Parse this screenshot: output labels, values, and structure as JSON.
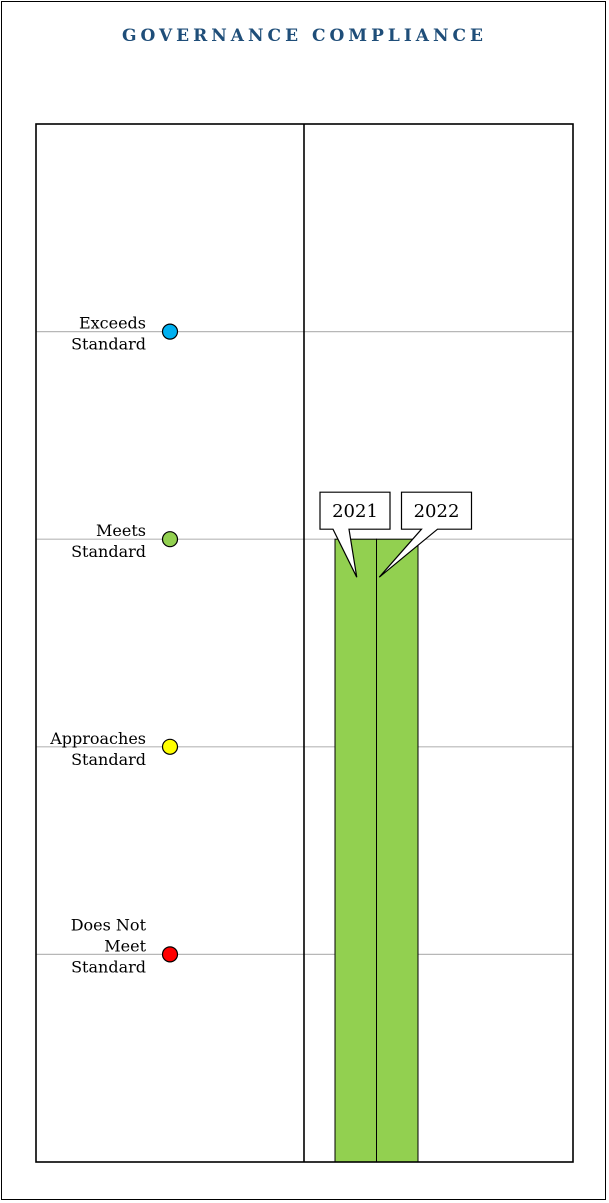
{
  "chart_data": {
    "type": "bar",
    "title": "GOVERNANCE COMPLIANCE",
    "title_color": "#1f4e79",
    "levels": [
      {
        "lines": [
          "Does Not",
          "Meet",
          "Standard"
        ],
        "value": 1,
        "color": "#ff0000"
      },
      {
        "lines": [
          "Approaches",
          "Standard"
        ],
        "value": 2,
        "color": "#ffff00"
      },
      {
        "lines": [
          "Meets",
          "Standard"
        ],
        "value": 3,
        "color": "#92d050"
      },
      {
        "lines": [
          "Exceeds",
          "Standard"
        ],
        "value": 4,
        "color": "#00b0f0"
      }
    ],
    "categories": [
      "2021",
      "2022"
    ],
    "values": [
      3,
      3
    ],
    "ylim": [
      0,
      5
    ],
    "grid": true,
    "bar_color": "#92d050"
  }
}
